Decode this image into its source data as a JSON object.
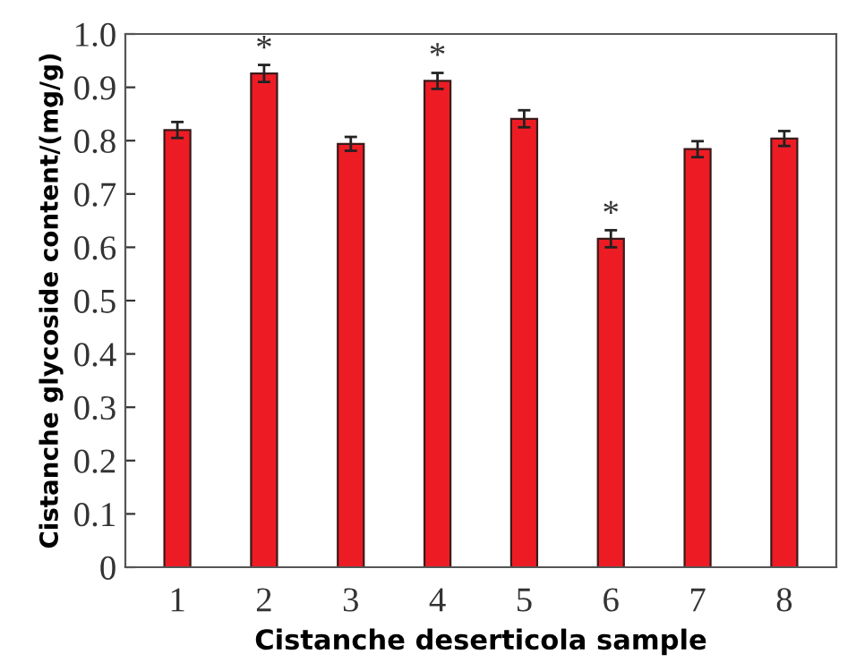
{
  "chart_data": {
    "type": "bar",
    "xlabel": "Cistanche deserticola sample",
    "ylabel": "Cistanche glycoside content/(mg/g)",
    "categories": [
      "1",
      "2",
      "3",
      "4",
      "5",
      "6",
      "7",
      "8"
    ],
    "values": [
      0.82,
      0.926,
      0.794,
      0.912,
      0.841,
      0.616,
      0.784,
      0.804
    ],
    "errors": [
      0.015,
      0.016,
      0.013,
      0.015,
      0.016,
      0.016,
      0.015,
      0.014
    ],
    "color": "#ed1c24",
    "ylim": [
      0,
      1.0
    ],
    "yticks": [
      {
        "value": 0,
        "label": "0"
      },
      0.1,
      0.2,
      0.3,
      0.4,
      0.5,
      0.6,
      0.7,
      0.8,
      0.9,
      {
        "value": 1.0,
        "label": "1.0"
      }
    ],
    "annotations": [
      {
        "text": "*",
        "x": "2",
        "y": 0.926
      },
      {
        "text": "*",
        "x": "4",
        "y": 0.912
      },
      {
        "text": "*",
        "x": "6",
        "y": 0.616
      }
    ],
    "grid": false,
    "legend": false
  }
}
